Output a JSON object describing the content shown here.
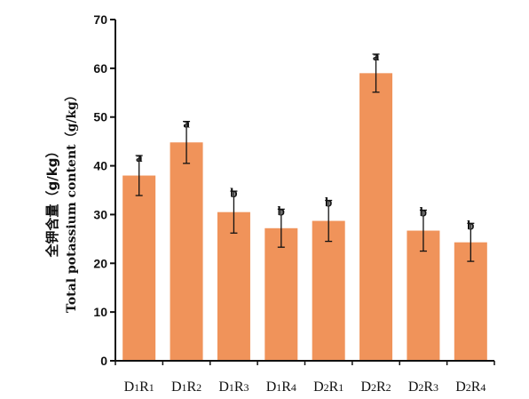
{
  "chart_data": {
    "type": "bar",
    "title": "",
    "ylabel_cn": "全钾含量（g/kg）",
    "ylabel_en": "Total potassium content（g/kg）",
    "xlabel": "",
    "ylim": [
      0,
      70
    ],
    "yticks": [
      "0",
      "10",
      "20",
      "30",
      "40",
      "50",
      "60",
      "70"
    ],
    "categories": [
      "D1R1",
      "D1R2",
      "D1R3",
      "D1R4",
      "D2R1",
      "D2R2",
      "D2R3",
      "D2R4"
    ],
    "category_labels": [
      {
        "p": "D",
        "a": "1",
        "q": "R",
        "b": "1"
      },
      {
        "p": "D",
        "a": "1",
        "q": "R",
        "b": "2"
      },
      {
        "p": "D",
        "a": "1",
        "q": "R",
        "b": "3"
      },
      {
        "p": "D",
        "a": "1",
        "q": "R",
        "b": "4"
      },
      {
        "p": "D",
        "a": "2",
        "q": "R",
        "b": "1"
      },
      {
        "p": "D",
        "a": "2",
        "q": "R",
        "b": "2"
      },
      {
        "p": "D",
        "a": "2",
        "q": "R",
        "b": "3"
      },
      {
        "p": "D",
        "a": "2",
        "q": "R",
        "b": "4"
      }
    ],
    "values": [
      38,
      44.8,
      30.5,
      27.2,
      28.7,
      59,
      26.7,
      24.3
    ],
    "errors": [
      4.1,
      4.3,
      4.3,
      3.9,
      4.2,
      3.9,
      4.2,
      3.9
    ],
    "significance": [
      "a",
      "a",
      "b",
      "b",
      "b",
      "a",
      "b",
      "b"
    ],
    "bar_color": "#F0935A",
    "grid": false
  }
}
